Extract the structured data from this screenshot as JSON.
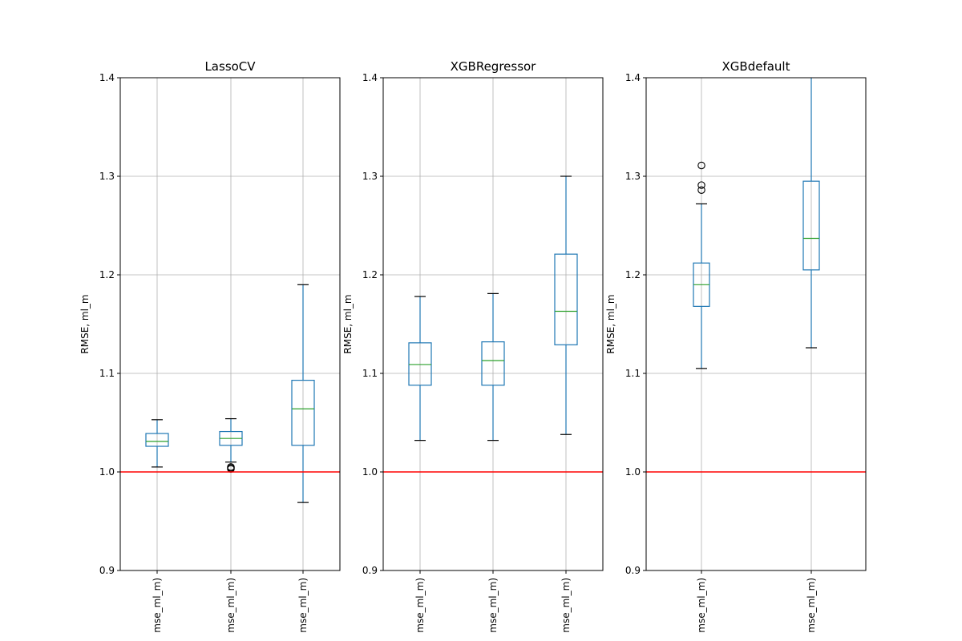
{
  "colors": {
    "box": "#1f77b4",
    "median": "#2ca02c",
    "reference_line": "#ff0000",
    "grid": "#b0b0b0",
    "axes": "#000000"
  },
  "chart_data": [
    {
      "type": "box",
      "title": "LassoCV",
      "ylabel": "RMSE, ml_m",
      "ylim": [
        0.9,
        1.4
      ],
      "yticks": [
        "0.9",
        "1.0",
        "1.1",
        "1.2",
        "1.3",
        "1.4"
      ],
      "reference_line": 1.0,
      "categories": [
        "mse_ml_m)",
        "mse_ml_m)",
        "mse_ml_m)"
      ],
      "boxes": [
        {
          "whisker_low": 1.005,
          "q1": 1.026,
          "median": 1.031,
          "q3": 1.039,
          "whisker_high": 1.053,
          "outliers": []
        },
        {
          "whisker_low": 1.01,
          "q1": 1.027,
          "median": 1.034,
          "q3": 1.041,
          "whisker_high": 1.054,
          "outliers": [
            1.004,
            1.003,
            1.005
          ]
        },
        {
          "whisker_low": 0.969,
          "q1": 1.027,
          "median": 1.064,
          "q3": 1.093,
          "whisker_high": 1.19,
          "outliers": []
        }
      ]
    },
    {
      "type": "box",
      "title": "XGBRegressor",
      "ylabel": "RMSE, ml_m",
      "ylim": [
        0.9,
        1.4
      ],
      "yticks": [
        "0.9",
        "1.0",
        "1.1",
        "1.2",
        "1.3",
        "1.4"
      ],
      "reference_line": 1.0,
      "categories": [
        "mse_ml_m)",
        "mse_ml_m)",
        "mse_ml_m)"
      ],
      "boxes": [
        {
          "whisker_low": 1.032,
          "q1": 1.088,
          "median": 1.109,
          "q3": 1.131,
          "whisker_high": 1.178,
          "outliers": []
        },
        {
          "whisker_low": 1.032,
          "q1": 1.088,
          "median": 1.113,
          "q3": 1.132,
          "whisker_high": 1.181,
          "outliers": []
        },
        {
          "whisker_low": 1.038,
          "q1": 1.129,
          "median": 1.163,
          "q3": 1.221,
          "whisker_high": 1.3,
          "outliers": []
        }
      ]
    },
    {
      "type": "box",
      "title": "XGBdefault",
      "ylabel": "RMSE, ml_m",
      "ylim": [
        0.9,
        1.4
      ],
      "yticks": [
        "0.9",
        "1.0",
        "1.1",
        "1.2",
        "1.3",
        "1.4"
      ],
      "reference_line": 1.0,
      "categories": [
        "mse_ml_m)",
        "mse_ml_m)"
      ],
      "boxes": [
        {
          "whisker_low": 1.105,
          "q1": 1.168,
          "median": 1.19,
          "q3": 1.212,
          "whisker_high": 1.272,
          "outliers": [
            1.286,
            1.291,
            1.311
          ]
        },
        {
          "whisker_low": 1.126,
          "q1": 1.205,
          "median": 1.237,
          "q3": 1.295,
          "whisker_high": 1.405,
          "outliers": []
        }
      ]
    }
  ]
}
